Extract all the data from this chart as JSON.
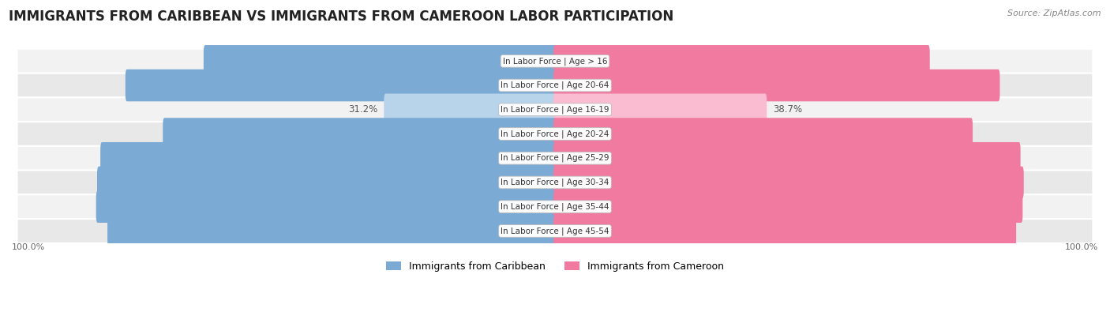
{
  "title": "IMMIGRANTS FROM CARIBBEAN VS IMMIGRANTS FROM CAMEROON LABOR PARTICIPATION",
  "source": "Source: ZipAtlas.com",
  "categories": [
    "In Labor Force | Age > 16",
    "In Labor Force | Age 20-64",
    "In Labor Force | Age 16-19",
    "In Labor Force | Age 20-24",
    "In Labor Force | Age 25-29",
    "In Labor Force | Age 30-34",
    "In Labor Force | Age 35-44",
    "In Labor Force | Age 45-54"
  ],
  "caribbean_values": [
    64.4,
    78.8,
    31.2,
    71.9,
    83.4,
    84.0,
    84.2,
    82.1
  ],
  "cameroon_values": [
    68.7,
    81.6,
    38.7,
    76.6,
    85.4,
    86.0,
    85.8,
    84.6
  ],
  "caribbean_color": "#7baad4",
  "cameroon_color": "#f07aa0",
  "caribbean_color_light": "#b8d4eb",
  "cameroon_color_light": "#f9bcd0",
  "row_bg_odd": "#f2f2f2",
  "row_bg_even": "#e8e8e8",
  "legend_caribbean": "Immigrants from Caribbean",
  "legend_cameroon": "Immigrants from Cameroon",
  "value_fontsize": 8.5,
  "category_fontsize": 7.5,
  "title_fontsize": 12
}
